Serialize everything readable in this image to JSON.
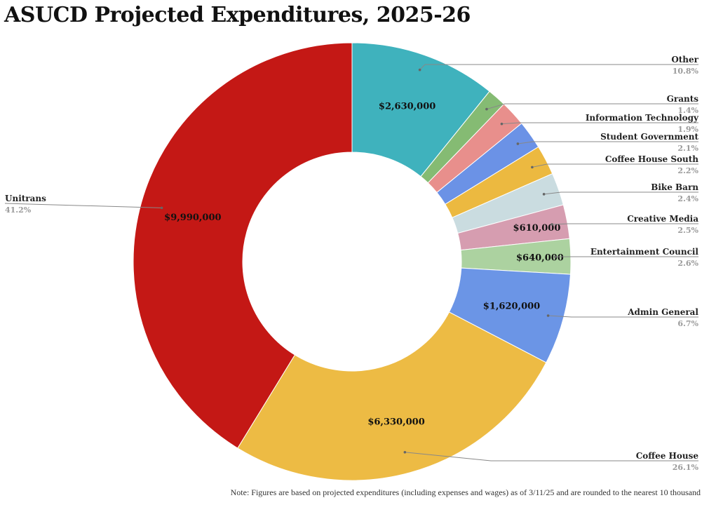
{
  "chart_data": {
    "type": "pie",
    "variant": "donut",
    "title": "ASUCD Projected Expenditures, 2025-26",
    "start_angle_deg": 0,
    "direction": "clockwise",
    "slices": [
      {
        "name": "Other",
        "percent": 10.8,
        "percent_label": "10.8%",
        "value_label": "$2,630,000",
        "color": "#3fb2bd",
        "legend_side": "right"
      },
      {
        "name": "Grants",
        "percent": 1.4,
        "percent_label": "1.4%",
        "value_label": null,
        "color": "#85bb73",
        "legend_side": "right"
      },
      {
        "name": "Information Technology",
        "percent": 1.9,
        "percent_label": "1.9%",
        "value_label": null,
        "color": "#e88f8c",
        "legend_side": "right"
      },
      {
        "name": "Student Government",
        "percent": 2.1,
        "percent_label": "2.1%",
        "value_label": null,
        "color": "#6b92e6",
        "legend_side": "right"
      },
      {
        "name": "Coffee House South",
        "percent": 2.2,
        "percent_label": "2.2%",
        "value_label": null,
        "color": "#ecb940",
        "legend_side": "right"
      },
      {
        "name": "Bike Barn",
        "percent": 2.4,
        "percent_label": "2.4%",
        "value_label": null,
        "color": "#cadce0",
        "legend_side": "right"
      },
      {
        "name": "Creative Media",
        "percent": 2.5,
        "percent_label": "2.5%",
        "value_label": "$610,000",
        "color": "#d69db0",
        "legend_side": "right"
      },
      {
        "name": "Entertainment Council",
        "percent": 2.6,
        "percent_label": "2.6%",
        "value_label": "$640,000",
        "color": "#acd2a0",
        "legend_side": "right"
      },
      {
        "name": "Admin General",
        "percent": 6.7,
        "percent_label": "6.7%",
        "value_label": "$1,620,000",
        "color": "#6b95e6",
        "legend_side": "right"
      },
      {
        "name": "Coffee House",
        "percent": 26.1,
        "percent_label": "26.1%",
        "value_label": "$6,330,000",
        "color": "#edbb44",
        "legend_side": "right"
      },
      {
        "name": "Unitrans",
        "percent": 41.2,
        "percent_label": "41.2%",
        "value_label": "$9,990,000",
        "color": "#c41815",
        "legend_side": "left"
      }
    ]
  },
  "footnote": "Note: Figures are based on projected expenditures (including expenses and wages) as of 3/11/25 and are rounded to the nearest 10 thousand"
}
